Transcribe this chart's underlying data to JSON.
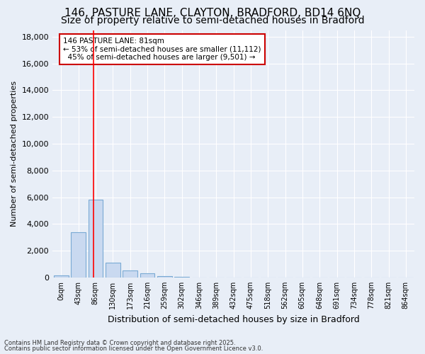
{
  "title_line1": "146, PASTURE LANE, CLAYTON, BRADFORD, BD14 6NQ",
  "title_line2": "Size of property relative to semi-detached houses in Bradford",
  "xlabel": "Distribution of semi-detached houses by size in Bradford",
  "ylabel": "Number of semi-detached properties",
  "bin_labels": [
    "0sqm",
    "43sqm",
    "86sqm",
    "130sqm",
    "173sqm",
    "216sqm",
    "259sqm",
    "302sqm",
    "346sqm",
    "389sqm",
    "432sqm",
    "475sqm",
    "518sqm",
    "562sqm",
    "605sqm",
    "648sqm",
    "691sqm",
    "734sqm",
    "778sqm",
    "821sqm",
    "864sqm"
  ],
  "bar_heights": [
    150,
    3400,
    5800,
    1100,
    500,
    290,
    110,
    40,
    0,
    0,
    0,
    0,
    0,
    0,
    0,
    0,
    0,
    0,
    0,
    0,
    0
  ],
  "bar_color": "#c9d9f0",
  "bar_edge_color": "#7aaad4",
  "ylim": [
    0,
    18500
  ],
  "yticks": [
    0,
    2000,
    4000,
    6000,
    8000,
    10000,
    12000,
    14000,
    16000,
    18000
  ],
  "red_line_x": 1.88,
  "annotation_text": "146 PASTURE LANE: 81sqm\n← 53% of semi-detached houses are smaller (11,112)\n  45% of semi-detached houses are larger (9,501) →",
  "annotation_box_color": "#ffffff",
  "annotation_box_edge": "#cc0000",
  "footer1": "Contains HM Land Registry data © Crown copyright and database right 2025.",
  "footer2": "Contains public sector information licensed under the Open Government Licence v3.0.",
  "background_color": "#e8eef7",
  "grid_color": "#ffffff",
  "title_fontsize": 11,
  "subtitle_fontsize": 10
}
